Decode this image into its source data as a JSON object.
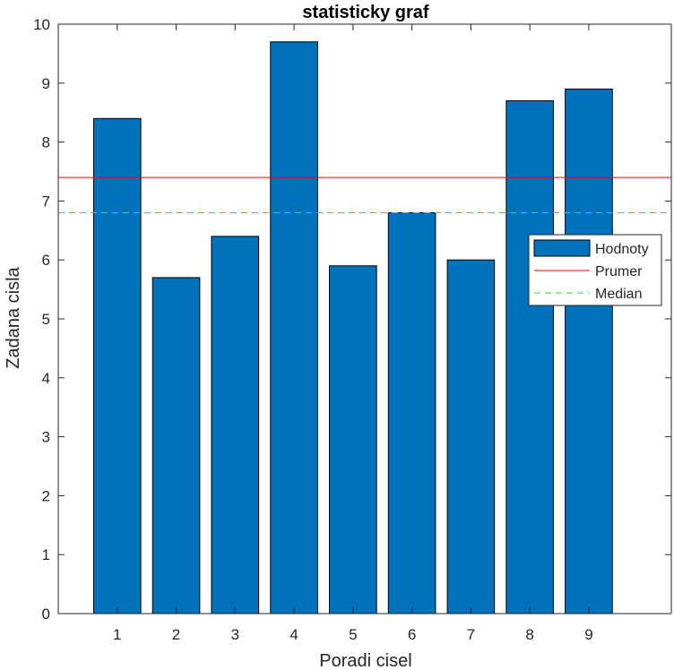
{
  "chart_data": {
    "type": "bar",
    "title": "statisticky graf",
    "xlabel": "Poradi cisel",
    "ylabel": "Zadana cisla",
    "categories": [
      "1",
      "2",
      "3",
      "4",
      "5",
      "6",
      "7",
      "8",
      "9"
    ],
    "x": [
      1,
      2,
      3,
      4,
      5,
      6,
      7,
      8,
      9
    ],
    "series": [
      {
        "name": "Hodnoty",
        "type": "bar",
        "values": [
          8.4,
          5.7,
          6.4,
          9.7,
          5.9,
          6.8,
          6.0,
          8.7,
          8.9
        ],
        "color": "#0072BD"
      },
      {
        "name": "Prumer",
        "type": "hline",
        "value": 7.4,
        "color": "#FF0000",
        "style": "solid"
      },
      {
        "name": "Median",
        "type": "hline",
        "value": 6.8,
        "color": "#00FF00",
        "style": "dashed"
      }
    ],
    "xlim": [
      0,
      10.4
    ],
    "ylim": [
      0,
      10
    ],
    "yticks": [
      0,
      1,
      2,
      3,
      4,
      5,
      6,
      7,
      8,
      9,
      10
    ],
    "grid": false,
    "legend_position": "right"
  }
}
